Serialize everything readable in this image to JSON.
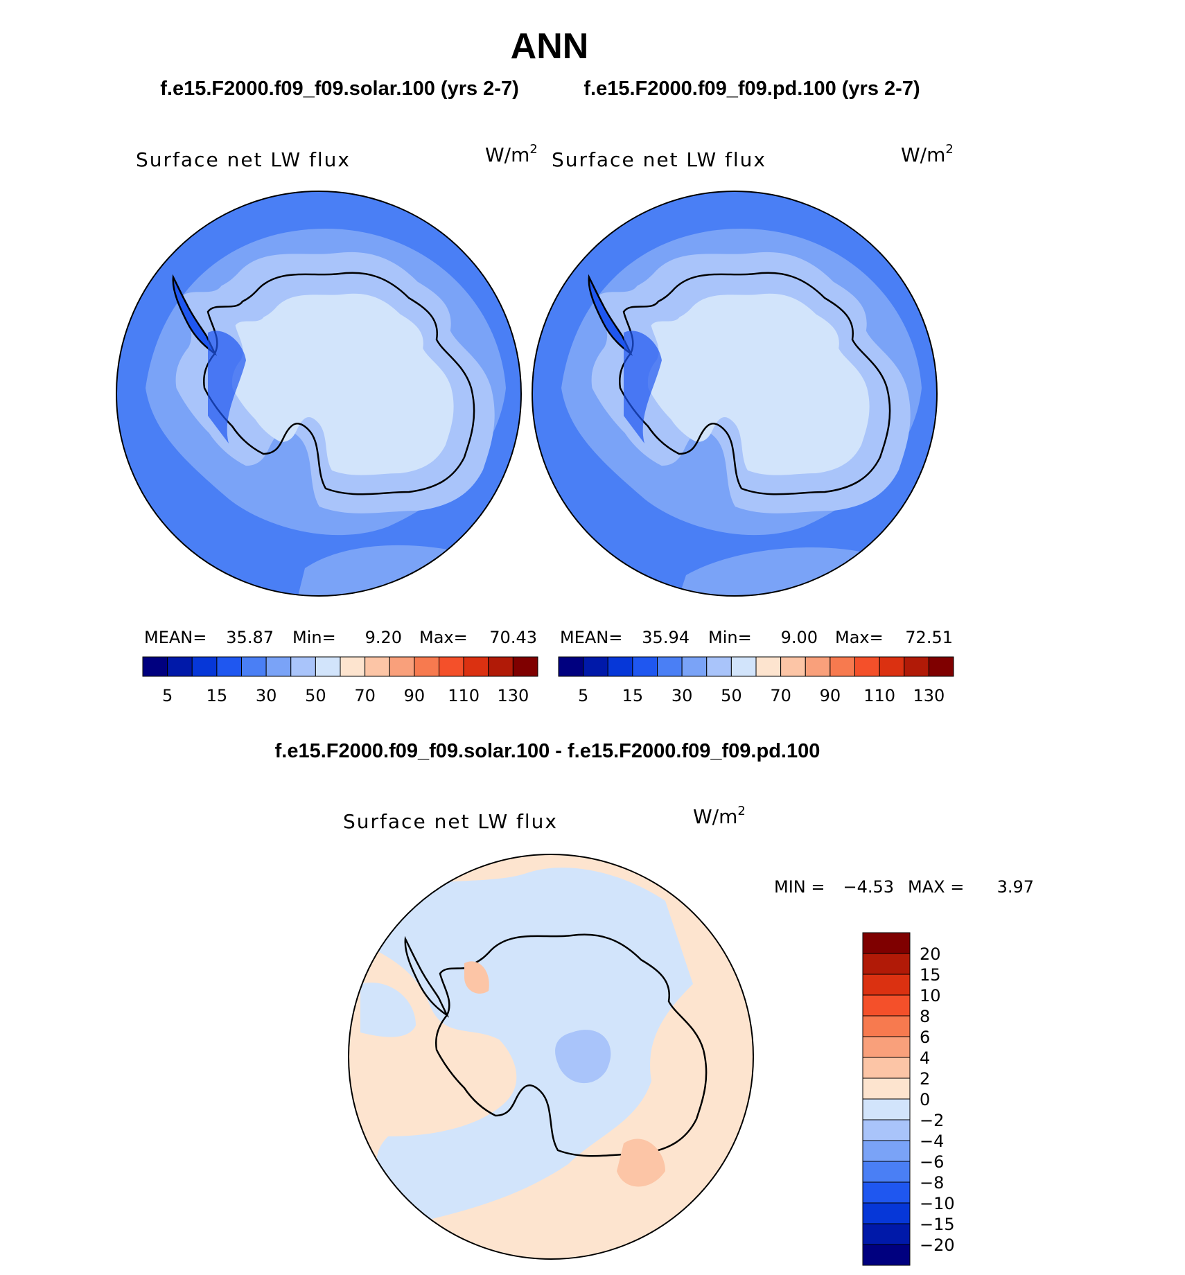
{
  "page": {
    "title": "ANN",
    "subtitle_left": "f.e15.F2000.f09_f09.solar.100 (yrs 2-7)",
    "subtitle_right": "f.e15.F2000.f09_f09.pd.100 (yrs 2-7)",
    "diff_title": "f.e15.F2000.f09_f09.solar.100 - f.e15.F2000.f09_f09.pd.100"
  },
  "panels": [
    {
      "id": "solar",
      "variable": "Surface net LW flux",
      "units": "W/m",
      "units_sup": "2",
      "stats": {
        "mean_label": "MEAN=",
        "mean": "35.87",
        "min_label": "Min=",
        "min": "9.20",
        "max_label": "Max=",
        "max": "70.43"
      }
    },
    {
      "id": "pd",
      "variable": "Surface net LW flux",
      "units": "W/m",
      "units_sup": "2",
      "stats": {
        "mean_label": "MEAN=",
        "mean": "35.94",
        "min_label": "Min=",
        "min": "9.00",
        "max_label": "Max=",
        "max": "72.51"
      }
    }
  ],
  "diff_panel": {
    "variable": "Surface net LW flux",
    "units": "W/m",
    "units_sup": "2",
    "min_label": "MIN =",
    "min": "−4.53",
    "max_label": "MAX =",
    "max": "3.97"
  },
  "colorbar_main": {
    "colors": [
      "#00007f",
      "#0019a9",
      "#0637d8",
      "#1f57f0",
      "#4a7ff5",
      "#7aa3f7",
      "#a9c4fa",
      "#d2e4fb",
      "#fde4cf",
      "#fcc5a6",
      "#f9a07b",
      "#f77a4f",
      "#f4502a",
      "#db3111",
      "#b11a07",
      "#7f0000"
    ],
    "labels": [
      "5",
      "15",
      "30",
      "50",
      "70",
      "90",
      "110",
      "130"
    ]
  },
  "colorbar_diff": {
    "colors_top_to_bottom": [
      "#7f0000",
      "#b11a07",
      "#db3111",
      "#f4502a",
      "#f77a4f",
      "#f9a07b",
      "#fcc5a6",
      "#fde4cf",
      "#d2e4fb",
      "#a9c4fa",
      "#7aa3f7",
      "#4a7ff5",
      "#1f57f0",
      "#0637d8",
      "#0019a9",
      "#00007f"
    ],
    "labels": [
      "20",
      "15",
      "10",
      "8",
      "6",
      "4",
      "2",
      "0",
      "−2",
      "−4",
      "−6",
      "−8",
      "−10",
      "−15",
      "−20"
    ]
  },
  "map_colors": {
    "ocean_outer": "#4a7ff5",
    "ocean_mid": "#7aa3f7",
    "shelf": "#a9c4fa",
    "interior": "#d2e4fb",
    "deep_blue": "#1f57f0",
    "diff_warm": "#fde4cf",
    "diff_cool": "#d2e4fb",
    "diff_warm2": "#fcc5a6",
    "diff_cool2": "#a9c4fa"
  }
}
